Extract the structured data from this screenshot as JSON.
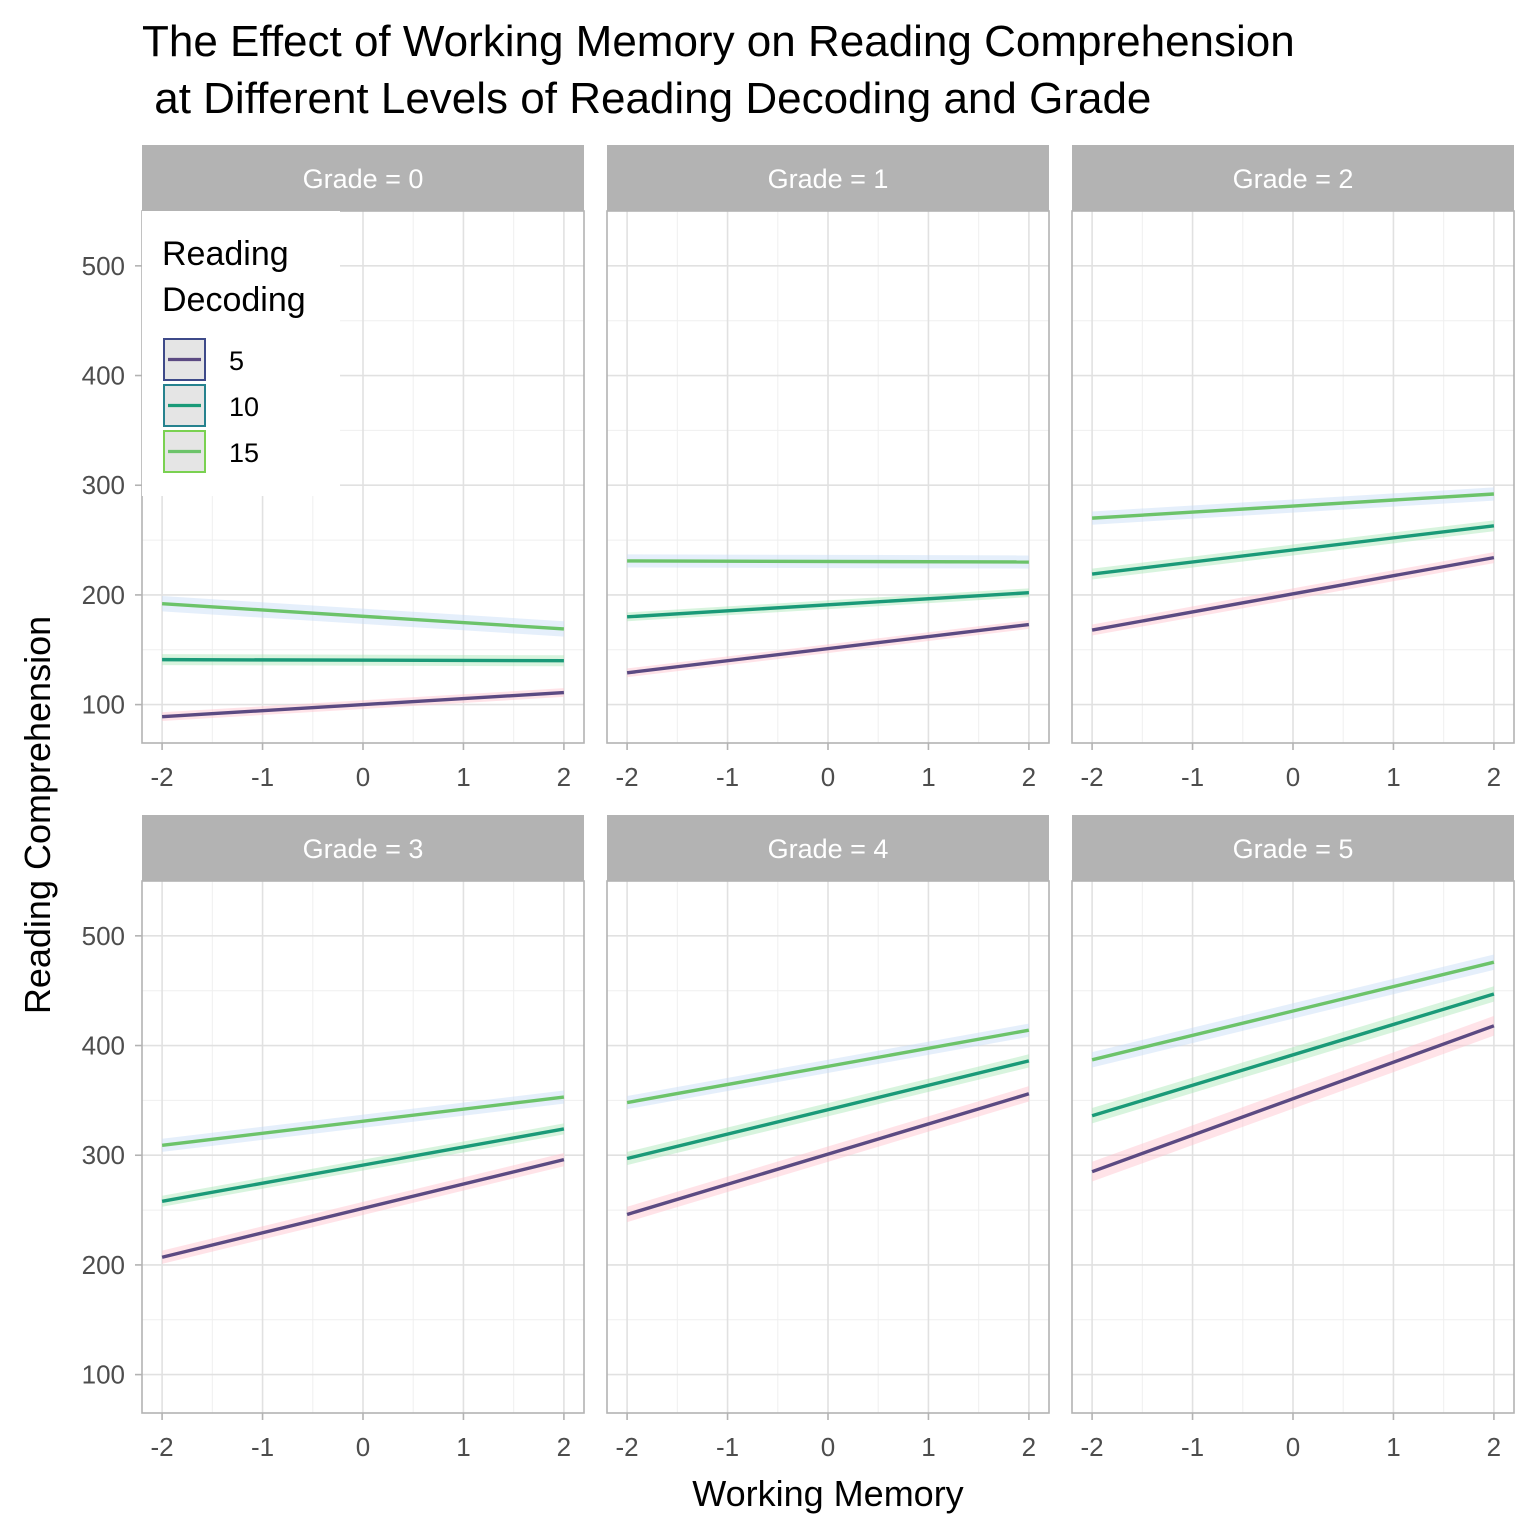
{
  "chart_data": {
    "type": "line",
    "title_line1": "The Effect of Working Memory on Reading Comprehension",
    "title_line2": " at Different Levels of Reading Decoding and Grade",
    "xlabel": "Working Memory",
    "ylabel": "Reading Comprehension",
    "xlim": [
      -2.2,
      2.2
    ],
    "ylim": [
      65,
      550
    ],
    "x_ticks": [
      -2,
      -1,
      0,
      1,
      2
    ],
    "y_ticks": [
      100,
      200,
      300,
      400,
      500
    ],
    "grid": true,
    "legend": {
      "title_line1": "Reading",
      "title_line2": "Decoding",
      "position": "top-left",
      "entries": [
        "5",
        "10",
        "15"
      ]
    },
    "series_styles": [
      {
        "name": "5",
        "line_color": "#5b4a82",
        "ribbon_color": "#ffc0cb",
        "key_border": "#3e4a89"
      },
      {
        "name": "10",
        "line_color": "#1a9a78",
        "ribbon_color": "#a8e6b5",
        "key_border": "#26828e"
      },
      {
        "name": "15",
        "line_color": "#6cc36a",
        "ribbon_color": "#c6dbf7",
        "key_border": "#7ad151"
      }
    ],
    "panels": [
      {
        "strip": "Grade = 0",
        "series": [
          {
            "name": "5",
            "x": [
              -2,
              2
            ],
            "y": [
              89,
              111
            ],
            "ribbon": 4
          },
          {
            "name": "10",
            "x": [
              -2,
              2
            ],
            "y": [
              141,
              140
            ],
            "ribbon": 5
          },
          {
            "name": "15",
            "x": [
              -2,
              2
            ],
            "y": [
              192,
              169
            ],
            "ribbon": 7
          }
        ]
      },
      {
        "strip": "Grade = 1",
        "series": [
          {
            "name": "5",
            "x": [
              -2,
              2
            ],
            "y": [
              129,
              173
            ],
            "ribbon": 4
          },
          {
            "name": "10",
            "x": [
              -2,
              2
            ],
            "y": [
              180,
              202
            ],
            "ribbon": 4
          },
          {
            "name": "15",
            "x": [
              -2,
              2
            ],
            "y": [
              231,
              230
            ],
            "ribbon": 6
          }
        ]
      },
      {
        "strip": "Grade = 2",
        "series": [
          {
            "name": "5",
            "x": [
              -2,
              2
            ],
            "y": [
              168,
              234
            ],
            "ribbon": 5
          },
          {
            "name": "10",
            "x": [
              -2,
              2
            ],
            "y": [
              219,
              263
            ],
            "ribbon": 5
          },
          {
            "name": "15",
            "x": [
              -2,
              2
            ],
            "y": [
              270,
              292
            ],
            "ribbon": 6
          }
        ]
      },
      {
        "strip": "Grade = 3",
        "series": [
          {
            "name": "5",
            "x": [
              -2,
              2
            ],
            "y": [
              207,
              296
            ],
            "ribbon": 6
          },
          {
            "name": "10",
            "x": [
              -2,
              2
            ],
            "y": [
              258,
              324
            ],
            "ribbon": 5
          },
          {
            "name": "15",
            "x": [
              -2,
              2
            ],
            "y": [
              309,
              353
            ],
            "ribbon": 6
          }
        ]
      },
      {
        "strip": "Grade = 4",
        "series": [
          {
            "name": "5",
            "x": [
              -2,
              2
            ],
            "y": [
              246,
              356
            ],
            "ribbon": 7
          },
          {
            "name": "10",
            "x": [
              -2,
              2
            ],
            "y": [
              297,
              386
            ],
            "ribbon": 6
          },
          {
            "name": "15",
            "x": [
              -2,
              2
            ],
            "y": [
              348,
              414
            ],
            "ribbon": 6
          }
        ]
      },
      {
        "strip": "Grade = 5",
        "series": [
          {
            "name": "5",
            "x": [
              -2,
              2
            ],
            "y": [
              285,
              418
            ],
            "ribbon": 9
          },
          {
            "name": "10",
            "x": [
              -2,
              2
            ],
            "y": [
              336,
              447
            ],
            "ribbon": 7
          },
          {
            "name": "15",
            "x": [
              -2,
              2
            ],
            "y": [
              387,
              476
            ],
            "ribbon": 7
          }
        ]
      }
    ]
  }
}
